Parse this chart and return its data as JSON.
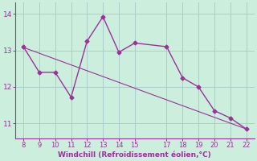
{
  "x": [
    8,
    9,
    10,
    11,
    12,
    13,
    14,
    15,
    17,
    18,
    19,
    20,
    21,
    22
  ],
  "y": [
    13.1,
    12.4,
    12.4,
    11.72,
    13.25,
    13.92,
    12.95,
    13.2,
    13.1,
    12.25,
    12.0,
    11.35,
    11.15,
    10.85
  ],
  "trend_x": [
    8,
    22
  ],
  "trend_y": [
    13.08,
    10.85
  ],
  "line_color": "#993399",
  "bg_color": "#cceedd",
  "grid_color": "#aacccc",
  "xlabel": "Windchill (Refroidissement éolien,°C)",
  "xlabel_color": "#993399",
  "xlim": [
    7.5,
    22.5
  ],
  "ylim": [
    10.6,
    14.3
  ],
  "xticks": [
    8,
    9,
    10,
    11,
    12,
    13,
    14,
    15,
    17,
    18,
    19,
    20,
    21,
    22
  ],
  "yticks": [
    11,
    12,
    13,
    14
  ],
  "tick_color": "#993399",
  "marker": "D",
  "marker_size": 2.5,
  "linewidth": 1.0
}
